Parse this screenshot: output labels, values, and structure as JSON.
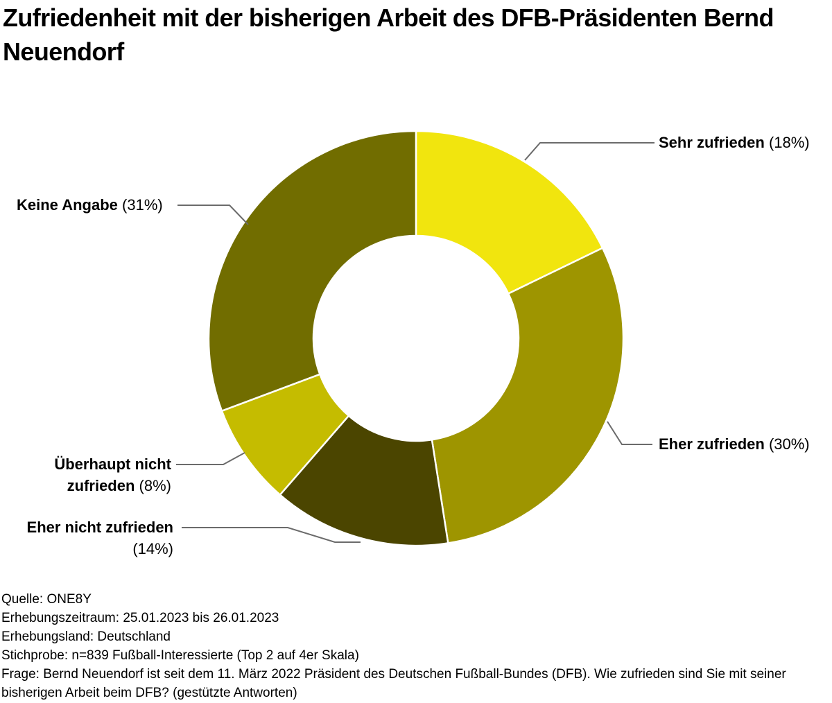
{
  "title": "Zufriedenheit mit der bisherigen Arbeit des DFB-Präsidenten Bernd Neuendorf",
  "labels": {
    "sehr": {
      "bold": "Sehr zufrieden",
      "pct": "(18%)"
    },
    "eher": {
      "bold": "Eher zufrieden",
      "pct": "(30%)"
    },
    "eher_nicht": {
      "bold": "Eher nicht zufrieden",
      "pct": "(14%)"
    },
    "ueberhaupt": {
      "bold_line1": "Überhaupt nicht",
      "bold_line2": "zufrieden",
      "pct": "(8%)"
    },
    "keine": {
      "bold": "Keine Angabe",
      "pct": "(31%)"
    }
  },
  "footer": {
    "line1": "Quelle: ONE8Y",
    "line2": "Erhebungszeitraum: 25.01.2023 bis 26.01.2023",
    "line3": "Erhebungsland: Deutschland",
    "line4": "Stichprobe: n=839 Fußball-Interessierte (Top 2 auf 4er Skala)",
    "line5": "Frage: Bernd Neuendorf ist seit dem 11. März 2022 Präsident des Deutschen Fußball-Bundes (DFB). Wie zufrieden sind Sie mit seiner bisherigen Arbeit beim DFB? (gestützte Antworten)"
  },
  "chart_data": {
    "type": "pie",
    "donut": true,
    "title": "Zufriedenheit mit der bisherigen Arbeit des DFB-Präsidenten Bernd Neuendorf",
    "categories": [
      "Sehr zufrieden",
      "Eher zufrieden",
      "Eher nicht zufrieden",
      "Überhaupt nicht zufrieden",
      "Keine Angabe"
    ],
    "values": [
      18,
      30,
      14,
      8,
      31
    ],
    "unit": "%",
    "colors": [
      "#f1e50e",
      "#9e9500",
      "#4b4500",
      "#c5bc00",
      "#716d00"
    ],
    "start_angle_deg": 0,
    "clockwise": true,
    "legend_position": "callout-labels",
    "leader_line_color": "#6b6b6b",
    "slice_gap_color": "#ffffff",
    "source": "ONE8Y",
    "survey_period": "25.01.2023 bis 26.01.2023",
    "survey_country": "Deutschland",
    "sample": "n=839 Fußball-Interessierte (Top 2 auf 4er Skala)"
  }
}
